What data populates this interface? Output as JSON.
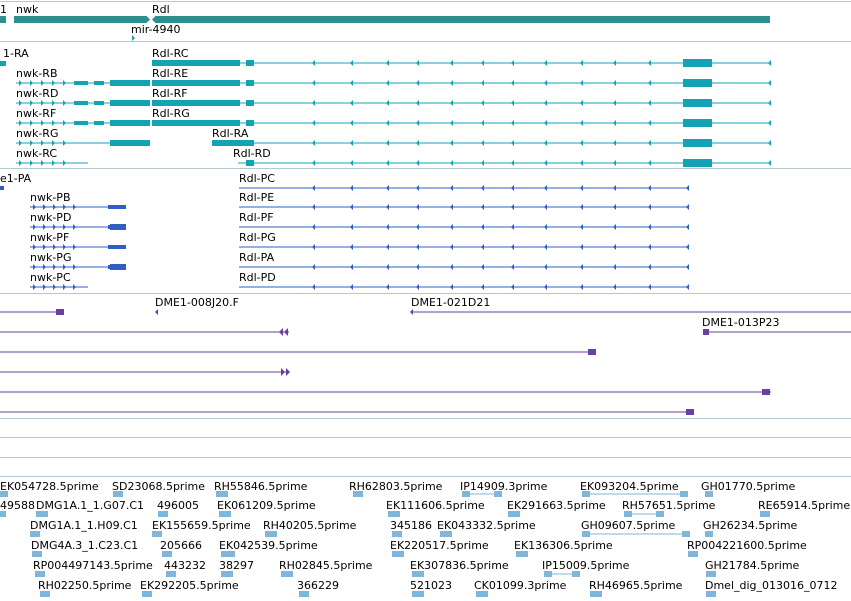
{
  "colors": {
    "gene": "#2f8f8f",
    "transcript": "#14a3b5",
    "protein": "#2f5fc4",
    "cdna": "#6a3fa3",
    "est": "#7fb6d9",
    "divider": "#b8c8d0"
  },
  "gene_track": {
    "labels": [
      "1",
      "nwk",
      "Rdl",
      "mir-4940"
    ]
  },
  "transcript_track": {
    "labels": [
      "1-RA",
      "Rdl-RC",
      "nwk-RB",
      "Rdl-RE",
      "nwk-RD",
      "Rdl-RF",
      "nwk-RF",
      "Rdl-RG",
      "nwk-RG",
      "Rdl-RA",
      "nwk-RC",
      "Rdl-RD"
    ]
  },
  "protein_track": {
    "labels": [
      "e1-PA",
      "Rdl-PC",
      "nwk-PB",
      "Rdl-PE",
      "nwk-PD",
      "Rdl-PF",
      "nwk-PF",
      "Rdl-PG",
      "nwk-PG",
      "Rdl-PA",
      "nwk-PC",
      "Rdl-PD"
    ]
  },
  "cdna_track": {
    "labels": [
      "DME1-008J20.F",
      "DME1-021D21",
      "DME1-013P23"
    ]
  },
  "est_track": {
    "labels": [
      "EK054728.5prime",
      "SD23068.5prime",
      "RH55846.5prime",
      "RH62803.5prime",
      "IP14909.3prime",
      "EK093204.5prime",
      "GH01770.5prime",
      "49588",
      "DMG1A.1_1.G07.C1",
      "496005",
      "EK061209.5prime",
      "EK111606.5prime",
      "EK291663.5prime",
      "RH57651.5prime",
      "RE65914.5prime",
      "DMG1A.1_1.H09.C1",
      "EK155659.5prime",
      "RH40205.5prime",
      "345186",
      "EK043332.5prime",
      "GH09607.5prime",
      "GH26234.5prime",
      "DMG4A.3_1.C23.C1",
      "205666",
      "EK042539.5prime",
      "EK220517.5prime",
      "EK136306.5prime",
      "RP004221600.5prime",
      "RP004497143.5prime",
      "443232",
      "38297",
      "RH02845.5prime",
      "EK307836.5prime",
      "IP15009.5prime",
      "GH21784.5prime",
      "RH02250.5prime",
      "EK292205.5prime",
      "366229",
      "521023",
      "CK01099.3prime",
      "RH46965.5prime",
      "Dmel_dig_013016_0712"
    ]
  }
}
